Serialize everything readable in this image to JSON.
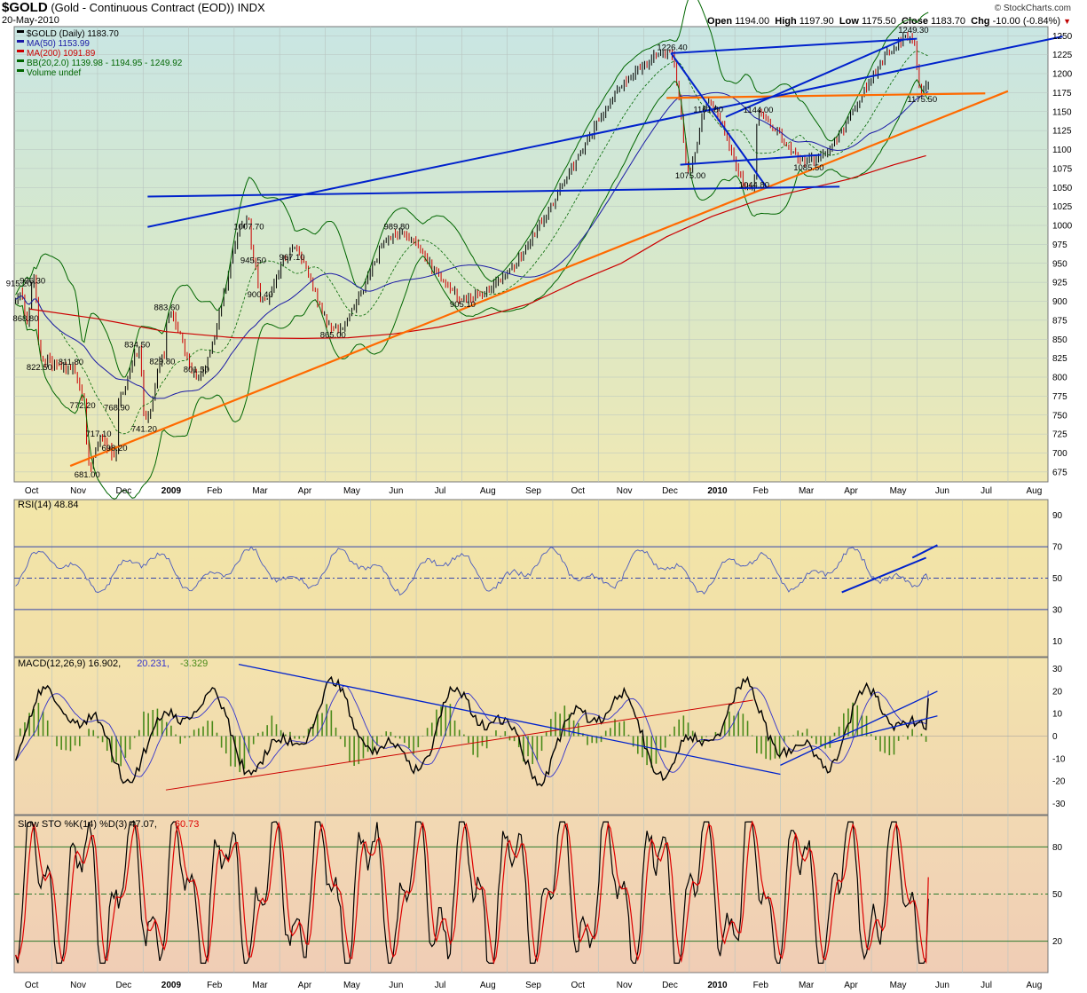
{
  "header": {
    "symbol": "$GOLD",
    "description": "(Gold - Continuous Contract (EOD))",
    "exchange": "INDX",
    "date": "20-May-2010",
    "open_label": "Open",
    "open": "1194.00",
    "high_label": "High",
    "high": "1197.90",
    "low_label": "Low",
    "low": "1175.50",
    "close_label": "Close",
    "close": "1183.70",
    "chg_label": "Chg",
    "chg": "-10.00 (-0.84%)",
    "logo": "© StockCharts.com"
  },
  "colors": {
    "up": "#000000",
    "down": "#cc0000",
    "ma50": "#1a1aa6",
    "ma200": "#cc0000",
    "bb": "#006600",
    "trend_blue": "#0022cc",
    "trend_orange": "#ff6a00",
    "rsi": "#4a5bbf",
    "macd": "#000000",
    "signal": "#3333cc",
    "hist": "#4a8a1a",
    "stok": "#000000",
    "stod": "#dd0000"
  },
  "chart_data": [
    {
      "type": "line",
      "panel": "price",
      "legend": [
        {
          "text": "$GOLD (Daily) 1183.70",
          "color": "#000000"
        },
        {
          "text": "MA(50) 1153.99",
          "color": "#1a1aa6"
        },
        {
          "text": "MA(200) 1091.89",
          "color": "#cc0000"
        },
        {
          "text": "BB(20,2.0) 1139.98 - 1194.95 - 1249.92",
          "color": "#006600"
        },
        {
          "text": "Volume undef",
          "color": "#006600"
        }
      ],
      "x_labels": [
        "Oct",
        "Nov",
        "Dec",
        "2009",
        "Feb",
        "Mar",
        "Apr",
        "May",
        "Jun",
        "Jul",
        "Aug",
        "Sep",
        "Oct",
        "Nov",
        "Dec",
        "2010",
        "Feb",
        "Mar",
        "Apr",
        "May",
        "Jun",
        "Jul",
        "Aug"
      ],
      "x_label_month": [
        0,
        1,
        2,
        3,
        4,
        5,
        6,
        7,
        8,
        9,
        10,
        11,
        12,
        13,
        14,
        15,
        16,
        17,
        18,
        19,
        20,
        21,
        22
      ],
      "ylim": [
        662,
        1262
      ],
      "yticks": [
        675,
        700,
        725,
        750,
        775,
        800,
        825,
        850,
        875,
        900,
        925,
        950,
        975,
        1000,
        1025,
        1050,
        1075,
        1100,
        1125,
        1150,
        1175,
        1200,
        1225,
        1250
      ],
      "pivot_points": [
        {
          "m": -0.2,
          "y": 915.2
        },
        {
          "m": 0.1,
          "y": 936.3
        },
        {
          "m": -0.05,
          "y": 868.8
        },
        {
          "m": 0.25,
          "y": 822.5
        },
        {
          "m": 0.95,
          "y": 811.8
        },
        {
          "m": 1.2,
          "y": 772.2
        },
        {
          "m": 1.55,
          "y": 717.1
        },
        {
          "m": 1.3,
          "y": 681.0
        },
        {
          "m": 1.9,
          "y": 698.2
        },
        {
          "m": 1.95,
          "y": 768.9
        },
        {
          "m": 2.4,
          "y": 834.5
        },
        {
          "m": 2.55,
          "y": 741.2
        },
        {
          "m": 3.05,
          "y": 883.6
        },
        {
          "m": 2.95,
          "y": 829.8
        },
        {
          "m": 3.7,
          "y": 801.5
        },
        {
          "m": 4.8,
          "y": 1007.7
        },
        {
          "m": 4.95,
          "y": 945.5
        },
        {
          "m": 5.8,
          "y": 967.1
        },
        {
          "m": 5.1,
          "y": 900.4
        },
        {
          "m": 6.7,
          "y": 865.0
        },
        {
          "m": 8.1,
          "y": 989.8
        },
        {
          "m": 9.55,
          "y": 905.1
        },
        {
          "m": 14.1,
          "y": 1226.4
        },
        {
          "m": 14.9,
          "y": 1161.8
        },
        {
          "m": 16.0,
          "y": 1144.0
        },
        {
          "m": 14.5,
          "y": 1075.0
        },
        {
          "m": 15.9,
          "y": 1044.8
        },
        {
          "m": 17.1,
          "y": 1085.5
        },
        {
          "m": 19.4,
          "y": 1249.3
        },
        {
          "m": 19.6,
          "y": 1175.5
        }
      ],
      "price_labels": [
        "915.20",
        "936.30",
        "868.80",
        "822.50",
        "811.80",
        "772.20",
        "717.10",
        "681.00",
        "698.20",
        "768.90",
        "834.50",
        "741.20",
        "883.60",
        "829.80",
        "801.50",
        "1007.70",
        "945.50",
        "967.10",
        "900.40",
        "865.00",
        "989.80",
        "905.10",
        "1226.40",
        "1161.80",
        "1144.00",
        "1075.00",
        "1044.80",
        "1085.50",
        "1249.30",
        "1175.50"
      ],
      "ma200_points": [
        [
          0,
          890
        ],
        [
          1.5,
          877
        ],
        [
          3,
          860
        ],
        [
          4.5,
          852
        ],
        [
          6,
          851
        ],
        [
          7,
          852
        ],
        [
          8,
          857
        ],
        [
          9,
          866
        ],
        [
          10,
          880
        ],
        [
          11,
          897
        ],
        [
          12,
          925
        ],
        [
          13,
          950
        ],
        [
          14,
          985
        ],
        [
          15,
          1012
        ],
        [
          16,
          1033
        ],
        [
          17,
          1047
        ],
        [
          18,
          1061
        ],
        [
          19,
          1080
        ],
        [
          19.7,
          1092
        ]
      ],
      "trendlines": [
        {
          "color": "orange",
          "m1": 0.9,
          "y1": 683,
          "m2": 21.5,
          "y2": 1177
        },
        {
          "color": "orange",
          "m1": 14.0,
          "y1": 1168,
          "m2": 21.0,
          "y2": 1174
        },
        {
          "color": "blue",
          "m1": 2.6,
          "y1": 1038,
          "m2": 17.8,
          "y2": 1051
        },
        {
          "color": "blue",
          "m1": 2.6,
          "y1": 998,
          "m2": 22.7,
          "y2": 1249
        },
        {
          "color": "blue",
          "m1": 14.1,
          "y1": 1227,
          "m2": 19.5,
          "y2": 1246
        },
        {
          "color": "blue",
          "m1": 14.1,
          "y1": 1227,
          "m2": 16.2,
          "y2": 1050
        },
        {
          "color": "blue",
          "m1": 14.3,
          "y1": 1080,
          "m2": 17.4,
          "y2": 1093
        },
        {
          "color": "blue",
          "m1": 15.3,
          "y1": 1143,
          "m2": 19.2,
          "y2": 1245
        }
      ]
    },
    {
      "type": "line",
      "panel": "rsi",
      "title": "RSI(14) 48.84",
      "ylim": [
        0,
        100
      ],
      "yticks": [
        10,
        30,
        50,
        70,
        90
      ],
      "ref_lines": [
        30,
        50,
        70
      ],
      "last": 48.84
    },
    {
      "type": "line",
      "panel": "macd",
      "title_parts": [
        {
          "text": "MACD(12,26,9) 16.902, ",
          "color": "#000000"
        },
        {
          "text": "20.231, ",
          "color": "#3333cc"
        },
        {
          "text": "-3.329",
          "color": "#4a8a1a"
        }
      ],
      "ylim": [
        -35,
        35
      ],
      "yticks": [
        -30,
        -20,
        -10,
        0,
        10,
        20,
        30
      ],
      "macd": 16.902,
      "signal": 20.231,
      "histogram": -3.329
    },
    {
      "type": "line",
      "panel": "stochastic",
      "title_parts": [
        {
          "text": "Slow STO %K(14) %D(3) 47.07, ",
          "color": "#000000"
        },
        {
          "text": "60.73",
          "color": "#dd0000"
        }
      ],
      "ylim": [
        0,
        100
      ],
      "yticks": [
        20,
        50,
        80
      ],
      "ref_lines": [
        20,
        50,
        80
      ],
      "k": 47.07,
      "d": 60.73
    }
  ]
}
